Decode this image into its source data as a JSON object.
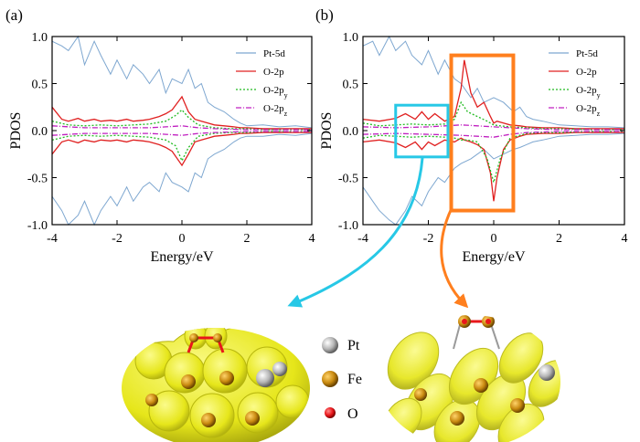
{
  "figure": {
    "atom_legend": [
      {
        "label": "Pt",
        "color": "#a9a9a9"
      },
      {
        "label": "Fe",
        "color": "#b8860b"
      },
      {
        "label": "O",
        "color": "#e8171b"
      }
    ],
    "callout_colors": {
      "cyan": "#27c8e6",
      "orange": "#ff7f1e"
    },
    "structure_colors": {
      "density": "#f0f01e",
      "density_edge": "#c9c816"
    }
  },
  "chart_data": [
    {
      "panel": "(a)",
      "type": "line",
      "xlabel": "Energy/eV",
      "ylabel": "PDOS",
      "xlim": [
        -4,
        4
      ],
      "ylim": [
        -1.0,
        1.0
      ],
      "xticks": [
        "-4",
        "-2",
        "0",
        "2",
        "4"
      ],
      "yticks": [
        "1.0",
        "0.5",
        "0.0",
        "-0.5",
        "-1.0"
      ],
      "legend": [
        "Pt-5d",
        "O-2p",
        "O-2p",
        "O-2p"
      ],
      "legend_subscripts": [
        "",
        "",
        "y",
        "z"
      ],
      "series": [
        {
          "name": "Pt-5d",
          "color": "#7ea7d0",
          "dash": "",
          "x": [
            -4.0,
            -3.7,
            -3.5,
            -3.2,
            -3.0,
            -2.7,
            -2.5,
            -2.2,
            -2.0,
            -1.7,
            -1.5,
            -1.2,
            -1.0,
            -0.7,
            -0.5,
            -0.3,
            0.0,
            0.2,
            0.4,
            0.6,
            0.8,
            1.0,
            1.3,
            1.6,
            1.8,
            2.0,
            2.5,
            3.0,
            3.5,
            4.0
          ],
          "up": [
            0.95,
            0.9,
            0.85,
            1.0,
            0.7,
            0.95,
            0.8,
            0.6,
            0.75,
            0.55,
            0.7,
            0.6,
            0.5,
            0.65,
            0.4,
            0.55,
            0.5,
            0.65,
            0.45,
            0.5,
            0.3,
            0.25,
            0.2,
            0.12,
            0.08,
            0.05,
            0.06,
            0.04,
            0.05,
            0.03
          ],
          "down": [
            -0.7,
            -0.85,
            -1.0,
            -0.9,
            -0.75,
            -1.0,
            -0.85,
            -0.7,
            -0.8,
            -0.6,
            -0.75,
            -0.6,
            -0.55,
            -0.65,
            -0.45,
            -0.55,
            -0.6,
            -0.65,
            -0.45,
            -0.5,
            -0.3,
            -0.25,
            -0.2,
            -0.12,
            -0.08,
            -0.06,
            -0.06,
            -0.04,
            -0.05,
            -0.03
          ]
        },
        {
          "name": "O-2p",
          "color": "#e02020",
          "dash": "",
          "x": [
            -4.0,
            -3.7,
            -3.5,
            -3.2,
            -3.0,
            -2.7,
            -2.5,
            -2.2,
            -2.0,
            -1.7,
            -1.5,
            -1.2,
            -1.0,
            -0.7,
            -0.5,
            -0.3,
            0.0,
            0.2,
            0.4,
            0.6,
            0.8,
            1.0,
            1.3,
            1.6,
            1.8,
            2.0,
            2.5,
            3.0,
            3.5,
            4.0
          ],
          "up": [
            0.25,
            0.12,
            0.1,
            0.13,
            0.1,
            0.12,
            0.1,
            0.11,
            0.1,
            0.12,
            0.1,
            0.11,
            0.12,
            0.15,
            0.18,
            0.22,
            0.36,
            0.2,
            0.12,
            0.1,
            0.08,
            0.06,
            0.05,
            0.04,
            0.03,
            0.03,
            0.02,
            0.02,
            0.02,
            0.02
          ],
          "down": [
            -0.25,
            -0.12,
            -0.1,
            -0.13,
            -0.1,
            -0.12,
            -0.1,
            -0.11,
            -0.1,
            -0.12,
            -0.1,
            -0.11,
            -0.12,
            -0.15,
            -0.18,
            -0.22,
            -0.37,
            -0.25,
            -0.12,
            -0.1,
            -0.08,
            -0.06,
            -0.05,
            -0.04,
            -0.03,
            -0.03,
            -0.02,
            -0.02,
            -0.02,
            -0.02
          ]
        },
        {
          "name": "O-2py",
          "color": "#22bb22",
          "dash": "2,2",
          "x": [
            -4.0,
            -3.5,
            -3.0,
            -2.5,
            -2.0,
            -1.5,
            -1.0,
            -0.5,
            -0.2,
            0.0,
            0.2,
            0.5,
            1.0,
            1.5,
            2.0,
            2.5,
            3.0,
            3.5,
            4.0
          ],
          "up": [
            0.1,
            0.06,
            0.05,
            0.06,
            0.05,
            0.06,
            0.07,
            0.1,
            0.16,
            0.22,
            0.14,
            0.06,
            0.03,
            0.02,
            0.02,
            0.01,
            0.01,
            0.01,
            0.01
          ],
          "down": [
            -0.1,
            -0.06,
            -0.05,
            -0.06,
            -0.05,
            -0.06,
            -0.07,
            -0.1,
            -0.16,
            -0.32,
            -0.18,
            -0.06,
            -0.03,
            -0.02,
            -0.02,
            -0.01,
            -0.01,
            -0.01,
            -0.01
          ]
        },
        {
          "name": "O-2pz",
          "color": "#c020c0",
          "dash": "6,2,1,2",
          "x": [
            -4.0,
            -3.0,
            -2.0,
            -1.0,
            -0.5,
            0.0,
            0.5,
            1.0,
            2.0,
            3.0,
            4.0
          ],
          "up": [
            0.05,
            0.03,
            0.03,
            0.03,
            0.04,
            0.05,
            0.03,
            0.02,
            0.01,
            0.01,
            0.01
          ],
          "down": [
            -0.05,
            -0.03,
            -0.03,
            -0.03,
            -0.04,
            -0.05,
            -0.03,
            -0.02,
            -0.01,
            -0.01,
            -0.01
          ]
        }
      ]
    },
    {
      "panel": "(b)",
      "type": "line",
      "xlabel": "Energy/eV",
      "ylabel": "PDOS",
      "xlim": [
        -4,
        4
      ],
      "ylim": [
        -1.0,
        1.0
      ],
      "xticks": [
        "-4",
        "-2",
        "0",
        "2",
        "4"
      ],
      "yticks": [
        "1.0",
        "0.5",
        "0.0",
        "-0.5",
        "-1.0"
      ],
      "legend": [
        "Pt-5d",
        "O-2p",
        "O-2p",
        "O-2p"
      ],
      "legend_subscripts": [
        "",
        "",
        "y",
        "z"
      ],
      "highlight_ranges": [
        {
          "x": [
            -3.0,
            -1.4
          ],
          "y": [
            -0.28,
            0.27
          ],
          "color": "#27c8e6"
        },
        {
          "x": [
            -1.3,
            0.6
          ],
          "y": [
            -0.85,
            0.8
          ],
          "color": "#ff7f1e"
        }
      ],
      "series": [
        {
          "name": "Pt-5d",
          "color": "#7ea7d0",
          "dash": "",
          "x": [
            -4.0,
            -3.7,
            -3.5,
            -3.2,
            -3.0,
            -2.7,
            -2.5,
            -2.2,
            -2.0,
            -1.7,
            -1.5,
            -1.2,
            -1.0,
            -0.7,
            -0.5,
            -0.3,
            0.0,
            0.3,
            0.6,
            0.8,
            1.0,
            1.2,
            1.5,
            2.0,
            2.5,
            3.0,
            3.5,
            4.0
          ],
          "up": [
            0.9,
            0.95,
            0.8,
            1.0,
            0.85,
            0.95,
            0.8,
            0.7,
            0.85,
            0.6,
            0.75,
            0.55,
            0.5,
            0.35,
            0.45,
            0.3,
            0.35,
            0.3,
            0.2,
            0.25,
            0.15,
            0.12,
            0.1,
            0.06,
            0.05,
            0.04,
            0.04,
            0.03
          ],
          "down": [
            -0.6,
            -0.75,
            -0.85,
            -0.95,
            -1.0,
            -0.85,
            -0.7,
            -0.8,
            -0.65,
            -0.5,
            -0.55,
            -0.4,
            -0.35,
            -0.3,
            -0.25,
            -0.2,
            -0.3,
            -0.25,
            -0.2,
            -0.18,
            -0.15,
            -0.12,
            -0.1,
            -0.06,
            -0.05,
            -0.04,
            -0.04,
            -0.03
          ]
        },
        {
          "name": "O-2p",
          "color": "#e02020",
          "dash": "",
          "x": [
            -4.0,
            -3.5,
            -3.0,
            -2.7,
            -2.4,
            -2.2,
            -2.0,
            -1.8,
            -1.5,
            -1.2,
            -1.0,
            -0.9,
            -0.7,
            -0.5,
            -0.3,
            -0.1,
            0.0,
            0.1,
            0.3,
            0.5,
            0.8,
            1.0,
            1.5,
            2.0,
            2.5,
            3.0,
            3.5,
            4.0
          ],
          "up": [
            0.12,
            0.1,
            0.13,
            0.18,
            0.12,
            0.2,
            0.12,
            0.18,
            0.1,
            0.15,
            0.45,
            0.75,
            0.4,
            0.25,
            0.3,
            0.15,
            0.08,
            0.1,
            0.08,
            0.06,
            0.05,
            0.04,
            0.03,
            0.03,
            0.02,
            0.02,
            0.02,
            0.02
          ],
          "down": [
            -0.12,
            -0.1,
            -0.13,
            -0.18,
            -0.12,
            -0.2,
            -0.12,
            -0.16,
            -0.1,
            -0.12,
            -0.08,
            -0.1,
            -0.12,
            -0.15,
            -0.2,
            -0.45,
            -0.75,
            -0.5,
            -0.2,
            -0.1,
            -0.06,
            -0.04,
            -0.03,
            -0.03,
            -0.02,
            -0.02,
            -0.02,
            -0.02
          ]
        },
        {
          "name": "O-2py",
          "color": "#22bb22",
          "dash": "2,2",
          "x": [
            -4.0,
            -3.5,
            -3.0,
            -2.5,
            -2.0,
            -1.5,
            -1.2,
            -1.0,
            -0.8,
            -0.5,
            -0.2,
            0.0,
            0.2,
            0.5,
            1.0,
            1.5,
            2.0,
            3.0,
            4.0
          ],
          "up": [
            0.08,
            0.05,
            0.06,
            0.07,
            0.06,
            0.07,
            0.12,
            0.3,
            0.2,
            0.15,
            0.1,
            0.06,
            0.05,
            0.04,
            0.03,
            0.02,
            0.02,
            0.01,
            0.01
          ],
          "down": [
            -0.08,
            -0.05,
            -0.06,
            -0.07,
            -0.06,
            -0.07,
            -0.08,
            -0.1,
            -0.1,
            -0.12,
            -0.3,
            -0.55,
            -0.3,
            -0.08,
            -0.03,
            -0.02,
            -0.02,
            -0.01,
            -0.01
          ]
        },
        {
          "name": "O-2pz",
          "color": "#c020c0",
          "dash": "6,2,1,2",
          "x": [
            -4.0,
            -3.0,
            -2.0,
            -1.0,
            -0.5,
            0.0,
            0.5,
            1.0,
            2.0,
            3.0,
            4.0
          ],
          "up": [
            0.04,
            0.03,
            0.04,
            0.06,
            0.05,
            0.04,
            0.03,
            0.02,
            0.01,
            0.01,
            0.01
          ],
          "down": [
            -0.04,
            -0.03,
            -0.04,
            -0.05,
            -0.06,
            -0.07,
            -0.04,
            -0.02,
            -0.01,
            -0.01,
            -0.01
          ]
        }
      ]
    }
  ]
}
